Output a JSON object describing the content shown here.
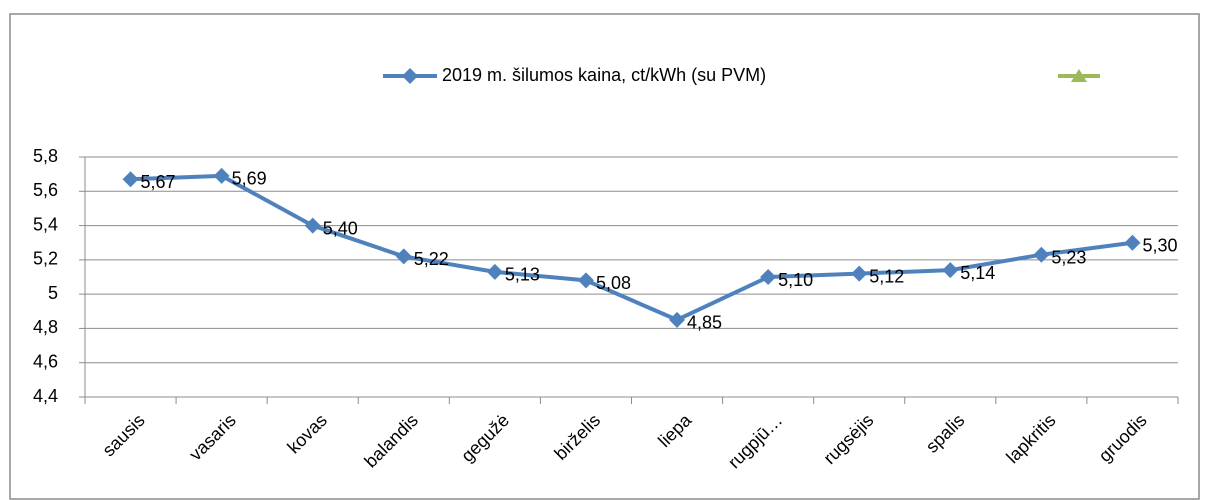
{
  "chart_data": {
    "type": "line",
    "categories": [
      "sausis",
      "vasaris",
      "kovas",
      "balandis",
      "gegužė",
      "birželis",
      "liepa",
      "rugpjū…",
      "rugsėjis",
      "spalis",
      "lapkritis",
      "gruodis"
    ],
    "series": [
      {
        "name": "2019 m.  šilumos kaina, ct/kWh  (su PVM)",
        "color": "#4f81bd",
        "values": [
          5.67,
          5.69,
          5.4,
          5.22,
          5.13,
          5.08,
          4.85,
          5.1,
          5.12,
          5.14,
          5.23,
          5.3
        ],
        "value_labels": [
          "5,67",
          "5,69",
          "5,40",
          "5,22",
          "5,13",
          "5,08",
          "4,85",
          "5,10",
          "5,12",
          "5,14",
          "5,23",
          "5,30"
        ]
      }
    ],
    "ylim": [
      4.4,
      5.8
    ],
    "yticks": [
      {
        "value": 4.4,
        "label": "4,4"
      },
      {
        "value": 4.6,
        "label": "4,6"
      },
      {
        "value": 4.8,
        "label": "4,8"
      },
      5,
      {
        "value": 5.2,
        "label": "5,2"
      },
      {
        "value": 5.4,
        "label": "5,4"
      },
      {
        "value": 5.6,
        "label": "5,6"
      },
      {
        "value": 5.8,
        "label": "5,8"
      }
    ],
    "grid": true,
    "legend": "top"
  }
}
